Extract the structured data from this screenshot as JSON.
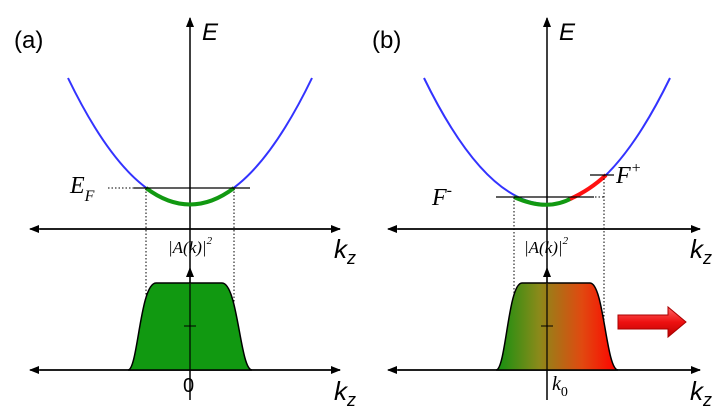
{
  "panels": [
    {
      "id": "a",
      "label": "(a)",
      "axis_E": "E",
      "axis_kz_top": "k",
      "axis_kz_sub": "z",
      "axis_kz_bottom": "k",
      "axis_kz_bottom_sub": "z",
      "fermi_label": "E",
      "fermi_sub": "F",
      "amplitude_label": "|A(k)|",
      "amplitude_sup": "2",
      "origin_label": "0",
      "colors": {
        "parabola": "#3333ff",
        "occupied": "#119911",
        "fill": "#119911"
      }
    },
    {
      "id": "b",
      "label": "(b)",
      "axis_E": "E",
      "axis_kz_top": "k",
      "axis_kz_sub": "z",
      "axis_kz_bottom": "k",
      "axis_kz_bottom_sub": "z",
      "f_minus": "F",
      "f_minus_sup": "-",
      "f_plus": "F",
      "f_plus_sup": "+",
      "amplitude_label": "|A(k)|",
      "amplitude_sup": "2",
      "center_label": "k",
      "center_sub": "0",
      "colors": {
        "parabola": "#3333ff",
        "occupied_left": "#119911",
        "occupied_right": "#ff1111",
        "arrow": "#ee1111"
      }
    }
  ]
}
